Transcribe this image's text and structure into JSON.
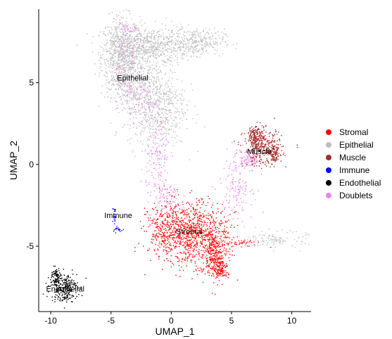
{
  "chart_data": {
    "type": "scatter",
    "xlabel": "UMAP_1",
    "ylabel": "UMAP_2",
    "xlim": [
      -11.0,
      11.6
    ],
    "ylim": [
      -9.0,
      9.5
    ],
    "x_ticks": [
      -10,
      -5,
      0,
      5,
      10
    ],
    "y_ticks": [
      -5,
      0,
      5
    ],
    "grid": false,
    "legend_position": "right",
    "series": [
      {
        "name": "Stromal",
        "color": "#ff0000"
      },
      {
        "name": "Epithelial",
        "color": "#bfbfbf"
      },
      {
        "name": "Muscle",
        "color": "#a52a2a"
      },
      {
        "name": "Immune",
        "color": "#0000ff"
      },
      {
        "name": "Endothelial",
        "color": "#000000"
      },
      {
        "name": "Doublets",
        "color": "#ee82ee"
      }
    ],
    "cluster_labels": [
      {
        "text": "Epithelial",
        "x": -3.2,
        "y": 5.3
      },
      {
        "text": "Muscle",
        "x": 7.3,
        "y": 0.8
      },
      {
        "text": "Immune",
        "x": -4.4,
        "y": -3.1
      },
      {
        "text": "Stromal",
        "x": 1.5,
        "y": -4.1
      },
      {
        "text": "Endothelial",
        "x": -8.8,
        "y": -7.6
      }
    ],
    "clusters": [
      {
        "series": 1,
        "n": 700,
        "cx": -4.2,
        "cy": 6.6,
        "sx": 0.8,
        "sy": 1.2
      },
      {
        "series": 1,
        "n": 650,
        "cx": -1.8,
        "cy": 7.2,
        "sx": 1.6,
        "sy": 0.6
      },
      {
        "series": 1,
        "n": 300,
        "cx": 2.0,
        "cy": 7.5,
        "sx": 1.2,
        "sy": 0.4
      },
      {
        "series": 1,
        "n": 650,
        "cx": -1.2,
        "cy": 3.6,
        "sx": 1.2,
        "sy": 1.3
      },
      {
        "series": 1,
        "n": 250,
        "cx": -3.2,
        "cy": 5.0,
        "sx": 0.8,
        "sy": 0.8
      },
      {
        "series": 5,
        "n": 90,
        "cx": -3.9,
        "cy": 5.8,
        "sx": 0.5,
        "sy": 1.8
      },
      {
        "series": 5,
        "n": 60,
        "cx": -2.3,
        "cy": 4.0,
        "sx": 0.6,
        "sy": 0.9
      },
      {
        "series": 5,
        "n": 25,
        "cx": -3.4,
        "cy": 8.2,
        "sx": 0.4,
        "sy": 0.2
      },
      {
        "series": 5,
        "n": 130,
        "cx": -1.1,
        "cy": 0.2,
        "sx": 0.5,
        "sy": 1.4
      },
      {
        "series": 5,
        "n": 90,
        "cx": -0.3,
        "cy": -2.2,
        "sx": 0.6,
        "sy": 0.7
      },
      {
        "series": 5,
        "n": 150,
        "cx": 5.4,
        "cy": -1.2,
        "sx": 0.7,
        "sy": 1.0
      },
      {
        "series": 5,
        "n": 80,
        "cx": 6.5,
        "cy": 0.3,
        "sx": 0.5,
        "sy": 0.3
      },
      {
        "series": 0,
        "n": 1000,
        "cx": 1.4,
        "cy": -4.2,
        "sx": 1.6,
        "sy": 0.95
      },
      {
        "series": 0,
        "n": 280,
        "cx": 3.6,
        "cy": -5.4,
        "sx": 0.6,
        "sy": 0.75
      },
      {
        "series": 0,
        "n": 120,
        "cx": 4.1,
        "cy": -6.4,
        "sx": 0.3,
        "sy": 0.3
      },
      {
        "series": 0,
        "n": 60,
        "cx": -1.0,
        "cy": -3.8,
        "sx": 0.3,
        "sy": 0.6
      },
      {
        "series": 0,
        "n": 40,
        "cx": 5.8,
        "cy": -4.8,
        "sx": 0.7,
        "sy": 0.1
      },
      {
        "series": 2,
        "n": 340,
        "cx": 7.6,
        "cy": 1.0,
        "sx": 0.8,
        "sy": 0.55
      },
      {
        "series": 2,
        "n": 120,
        "cx": 7.0,
        "cy": 1.8,
        "sx": 0.3,
        "sy": 0.3
      },
      {
        "series": 2,
        "n": 80,
        "cx": 8.6,
        "cy": 0.6,
        "sx": 0.2,
        "sy": 0.25
      },
      {
        "series": 3,
        "n": 22,
        "cx": -4.7,
        "cy": -3.2,
        "sx": 0.08,
        "sy": 0.3
      },
      {
        "series": 3,
        "n": 18,
        "cx": -4.4,
        "cy": -4.0,
        "sx": 0.25,
        "sy": 0.08
      },
      {
        "series": 4,
        "n": 260,
        "cx": -8.9,
        "cy": -7.5,
        "sx": 0.55,
        "sy": 0.45
      },
      {
        "series": 4,
        "n": 80,
        "cx": -9.6,
        "cy": -6.9,
        "sx": 0.2,
        "sy": 0.3
      },
      {
        "series": 1,
        "n": 110,
        "cx": 8.9,
        "cy": -4.6,
        "sx": 1.2,
        "sy": 0.25
      }
    ]
  }
}
